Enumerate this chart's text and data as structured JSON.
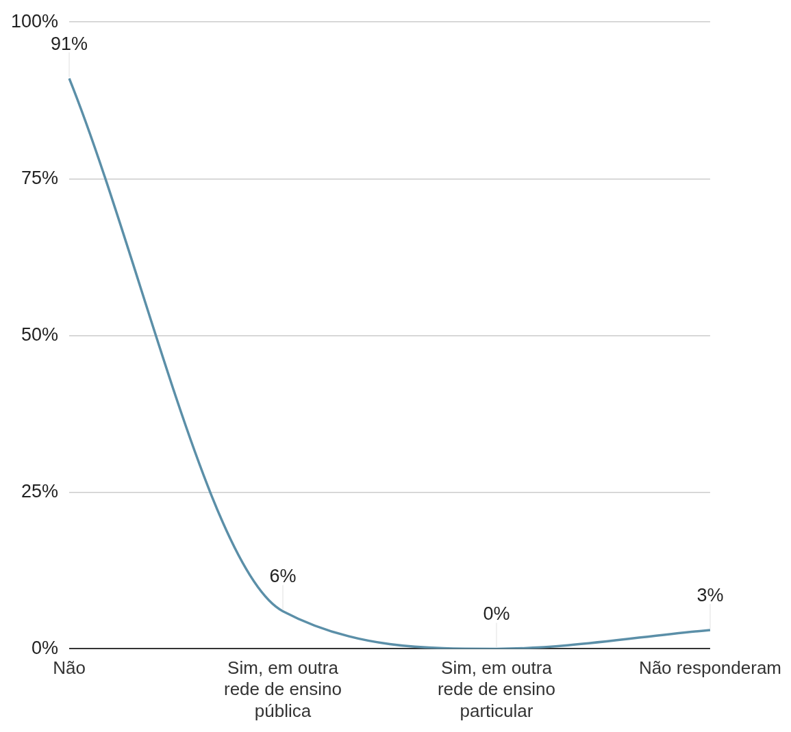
{
  "chart_data": {
    "type": "line",
    "categories": [
      "Não",
      "Sim, em outra rede de ensino pública",
      "Sim, em outra rede de ensino particular",
      "Não responderam"
    ],
    "series": [
      {
        "color": "#5b8fa8",
        "values": [
          91,
          6,
          0,
          3
        ],
        "value_labels": [
          "91%",
          "6%",
          "0%",
          "3%"
        ]
      }
    ],
    "ylim": [
      0,
      100
    ],
    "yticks": [
      {
        "value": 0,
        "label": "0%"
      },
      {
        "value": 25,
        "label": "25%"
      },
      {
        "value": 50,
        "label": "50%"
      },
      {
        "value": 75,
        "label": "75%"
      },
      {
        "value": 100,
        "label": "100%"
      }
    ],
    "grid": "y",
    "legend": false,
    "marker": "none",
    "line_style": "solid"
  }
}
